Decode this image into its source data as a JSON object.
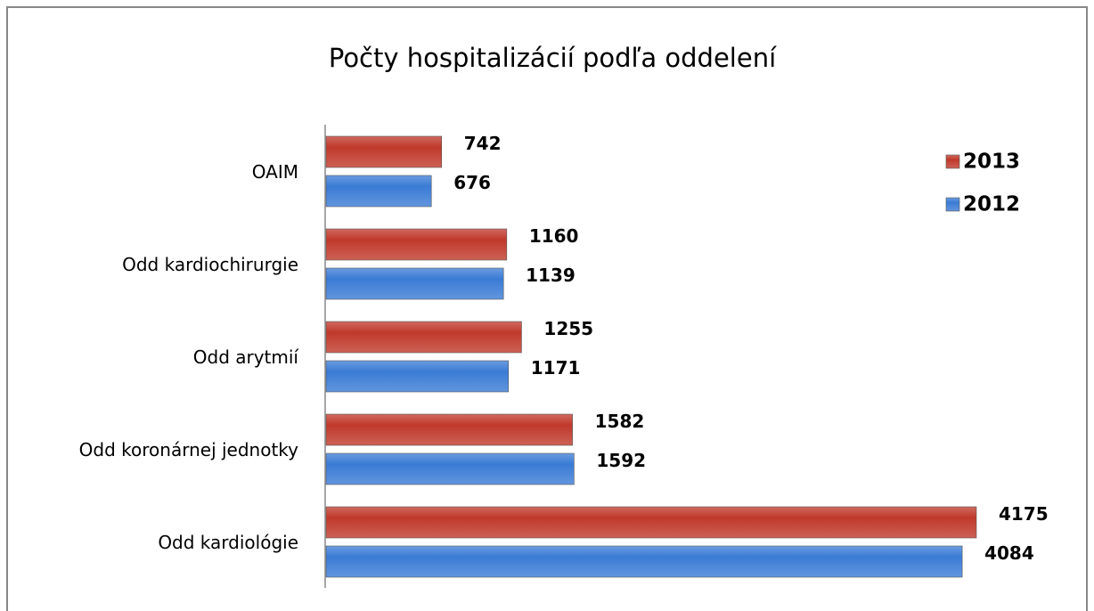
{
  "chart_data": {
    "type": "hbar",
    "title": "Počty hospitalizácií podľa oddelení",
    "categories": [
      "OAIM",
      "Odd kardiochirurgie",
      "Odd arytmií",
      "Odd koronárnej jednotky",
      "Odd kardiológie"
    ],
    "series": [
      {
        "name": "2013",
        "color": "#c0392b",
        "values": [
          742,
          1160,
          1255,
          1582,
          4175
        ]
      },
      {
        "name": "2012",
        "color": "#3a7bd5",
        "values": [
          676,
          1139,
          1171,
          1592,
          4084
        ]
      }
    ],
    "legend": "right"
  }
}
